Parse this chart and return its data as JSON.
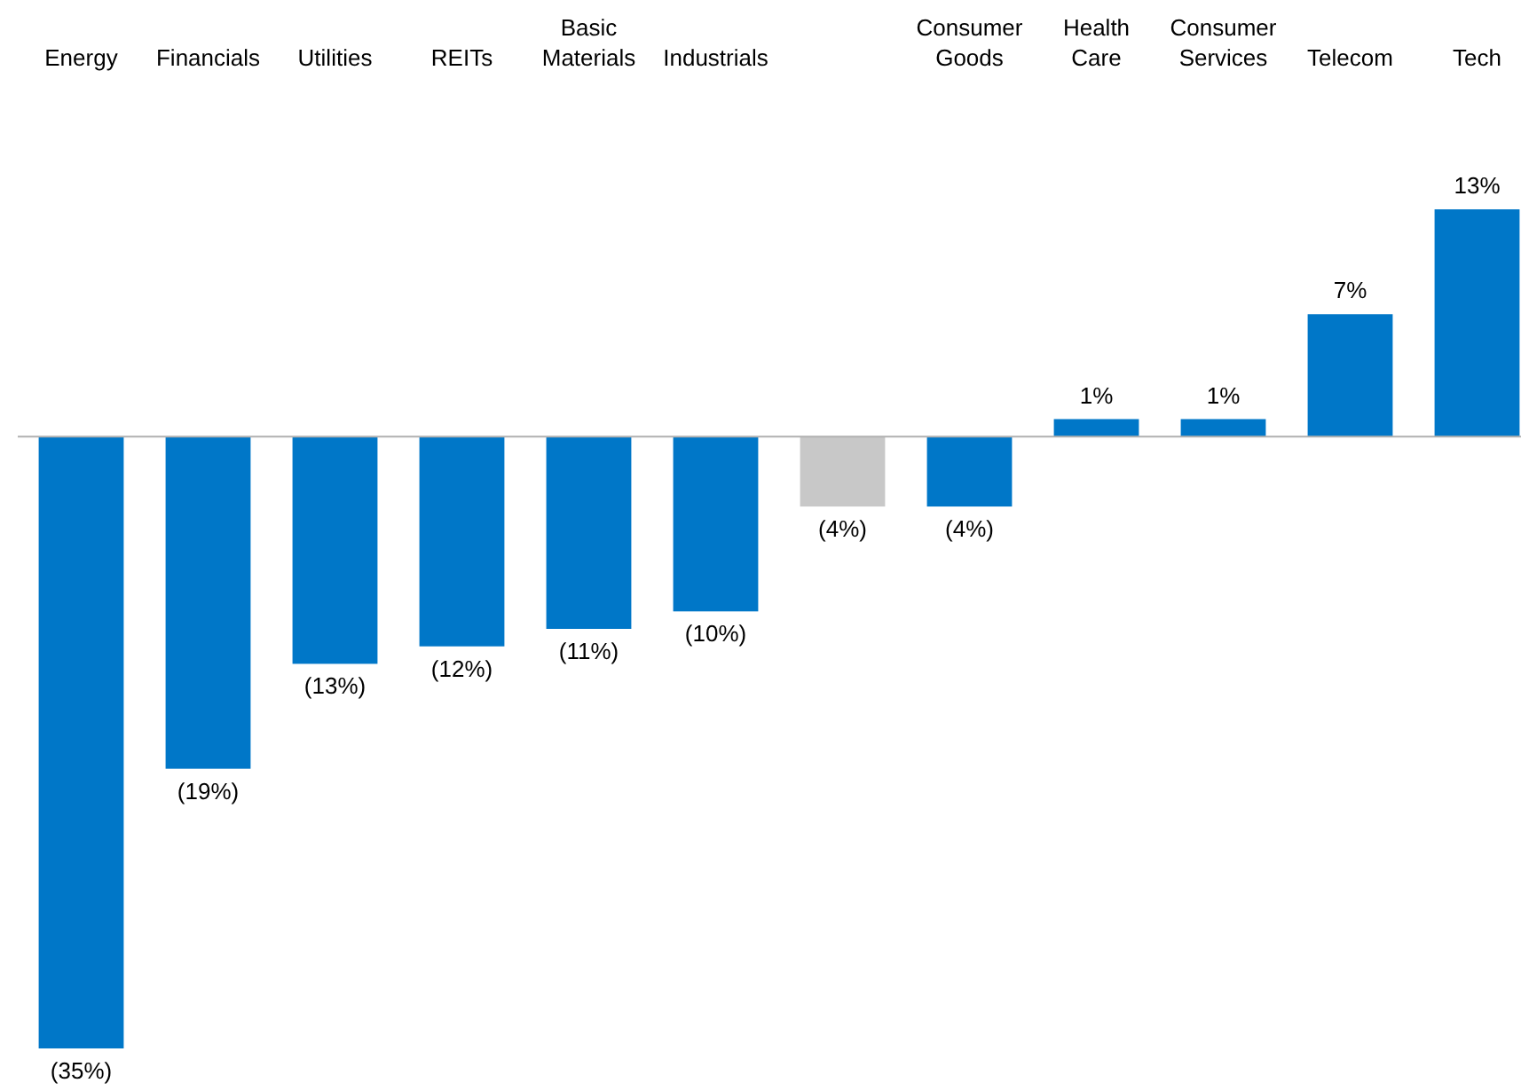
{
  "chart_data": {
    "type": "bar",
    "categories": [
      "Energy",
      "Financials",
      "Utilities",
      "REITs",
      "Basic\nMaterials",
      "Industrials",
      null,
      "Consumer\nGoods",
      "Health\nCare",
      "Consumer\nServices",
      "Telecom",
      "Tech"
    ],
    "values": [
      -35,
      -19,
      -13,
      -12,
      -11,
      -10,
      -4,
      -4,
      1,
      1,
      7,
      13
    ],
    "colors": [
      "#0077c8",
      "#0077c8",
      "#0077c8",
      "#0077c8",
      "#0077c8",
      "#0077c8",
      "#c8c8c8",
      "#0077c8",
      "#0077c8",
      "#0077c8",
      "#0077c8",
      "#0077c8"
    ],
    "value_labels": [
      "(35%)",
      "(19%)",
      "(13%)",
      "(12%)",
      "(11%)",
      "(10%)",
      "(4%)",
      "(4%)",
      "1%",
      "1%",
      "7%",
      "13%"
    ]
  }
}
